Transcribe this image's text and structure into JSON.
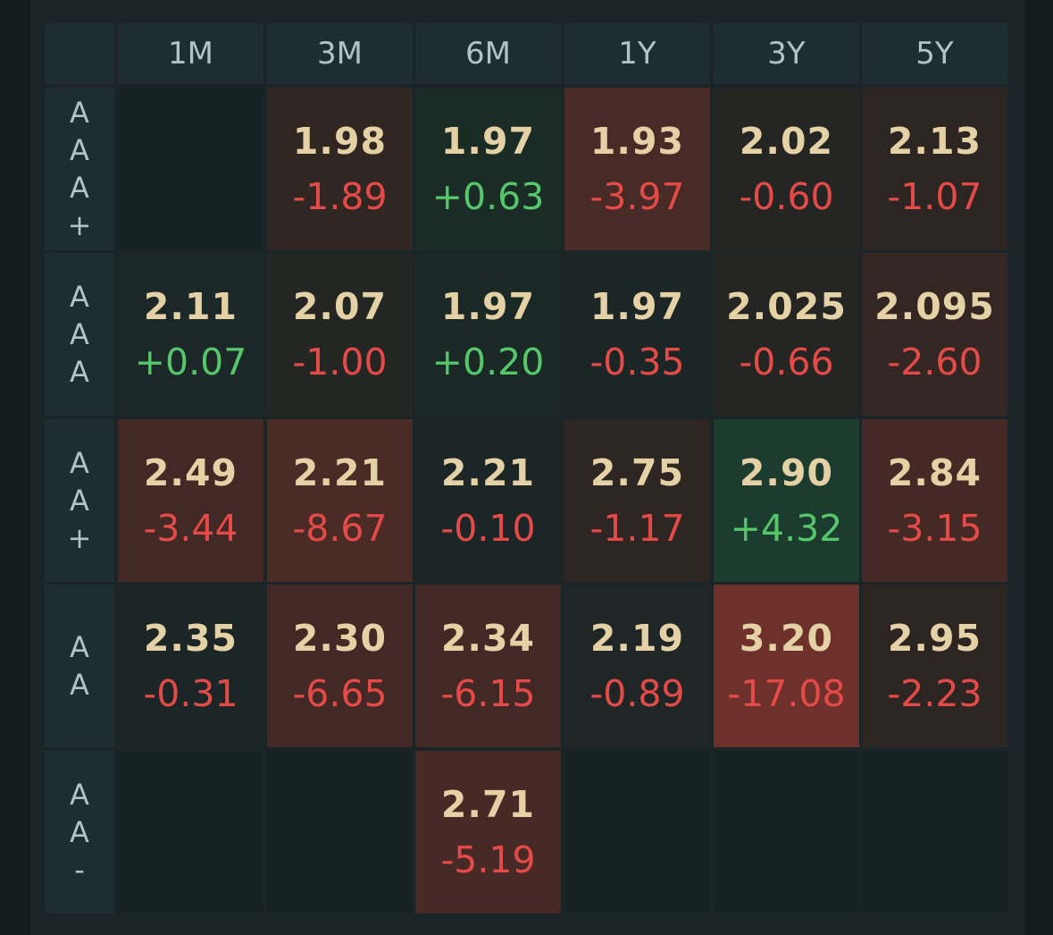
{
  "columns": [
    "1M",
    "3M",
    "6M",
    "1Y",
    "3Y",
    "5Y"
  ],
  "rows": [
    {
      "label": [
        "A",
        "A",
        "A",
        "+"
      ],
      "cells": [
        null,
        {
          "yield": "1.98",
          "change": "-1.89",
          "bg": "#302622"
        },
        {
          "yield": "1.97",
          "change": "+0.63",
          "bg": "#1a2c25"
        },
        {
          "yield": "1.93",
          "change": "-3.97",
          "bg": "#482a26"
        },
        {
          "yield": "2.02",
          "change": "-0.60",
          "bg": "#252523"
        },
        {
          "yield": "2.13",
          "change": "-1.07",
          "bg": "#2d2522"
        }
      ]
    },
    {
      "label": [
        "A",
        "A",
        "A"
      ],
      "cells": [
        {
          "yield": "2.11",
          "change": "+0.07",
          "bg": "#1b2827"
        },
        {
          "yield": "2.07",
          "change": "-1.00",
          "bg": "#242624"
        },
        {
          "yield": "1.97",
          "change": "+0.20",
          "bg": "#1b2926"
        },
        {
          "yield": "1.97",
          "change": "-0.35",
          "bg": "#1c2626"
        },
        {
          "yield": "2.025",
          "change": "-0.66",
          "bg": "#252523"
        },
        {
          "yield": "2.095",
          "change": "-2.60",
          "bg": "#342622"
        }
      ]
    },
    {
      "label": [
        "A",
        "A",
        "+"
      ],
      "cells": [
        {
          "yield": "2.49",
          "change": "-3.44",
          "bg": "#432925"
        },
        {
          "yield": "2.21",
          "change": "-8.67",
          "bg": "#4a2b26"
        },
        {
          "yield": "2.21",
          "change": "-0.10",
          "bg": "#1c2626"
        },
        {
          "yield": "2.75",
          "change": "-1.17",
          "bg": "#2e2623"
        },
        {
          "yield": "2.90",
          "change": "+4.32",
          "bg": "#1c3c2f"
        },
        {
          "yield": "2.84",
          "change": "-3.15",
          "bg": "#452925"
        }
      ]
    },
    {
      "label": [
        "A",
        "A"
      ],
      "cells": [
        {
          "yield": "2.35",
          "change": "-0.31",
          "bg": "#1c2626"
        },
        {
          "yield": "2.30",
          "change": "-6.65",
          "bg": "#432925"
        },
        {
          "yield": "2.34",
          "change": "-6.15",
          "bg": "#432925"
        },
        {
          "yield": "2.19",
          "change": "-0.89",
          "bg": "#1f2625"
        },
        {
          "yield": "3.20",
          "change": "-17.08",
          "bg": "#6e302b"
        },
        {
          "yield": "2.95",
          "change": "-2.23",
          "bg": "#2d2522"
        }
      ]
    },
    {
      "label": [
        "A",
        "A",
        "-"
      ],
      "cells": [
        null,
        null,
        {
          "yield": "2.71",
          "change": "-5.19",
          "bg": "#472a25"
        },
        null,
        null,
        null
      ]
    }
  ],
  "colors": {
    "empty_cell": "#172224",
    "header_bg": "#1e2d32",
    "yield_text": "#e5d1a6",
    "negative": "#e44a47",
    "positive": "#56c66a"
  }
}
